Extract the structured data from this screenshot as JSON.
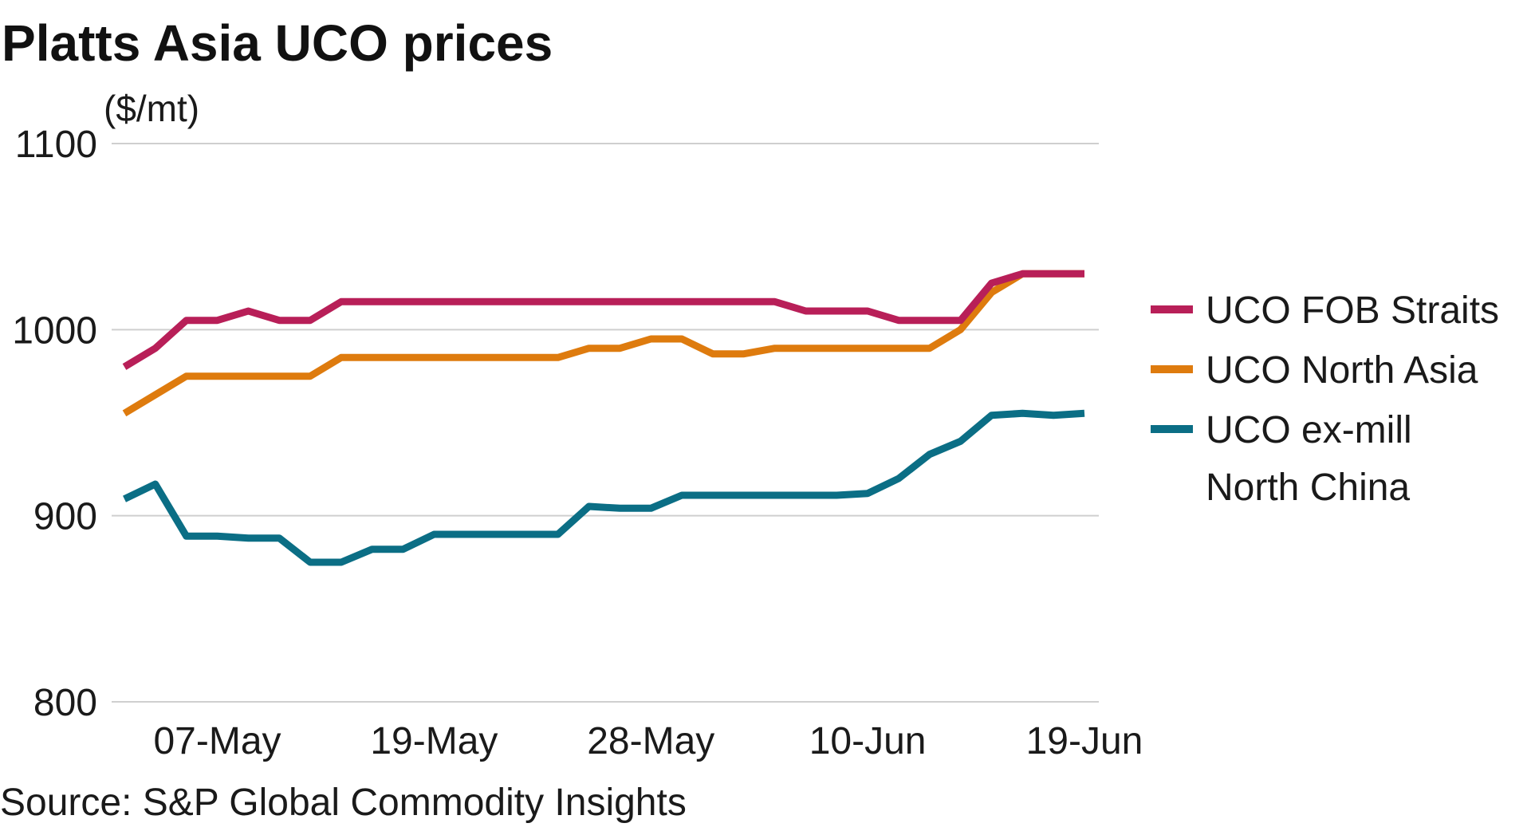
{
  "chart_data": {
    "type": "line",
    "title": "Platts Asia UCO prices",
    "ylabel": "($/mt)",
    "xlabel": "",
    "source": "Source: S&P Global Commodity Insights",
    "ylim": [
      800,
      1100
    ],
    "yticks": [
      "1100",
      "1000",
      "900",
      "800"
    ],
    "yticks_values": [
      1100,
      1000,
      900,
      800
    ],
    "xtick_labels": [
      "07-May",
      "19-May",
      "28-May",
      "10-Jun",
      "19-Jun"
    ],
    "xtick_index": [
      3,
      10,
      17,
      24,
      31
    ],
    "grid": true,
    "legend_position": "right",
    "colors": {
      "fob_straits": "#b81f58",
      "north_asia": "#de7b0e",
      "ex_mill": "#0b6e85",
      "gridline": "#cfcfcf"
    },
    "series": [
      {
        "name": "UCO FOB Straits",
        "color": "#b81f58",
        "values": [
          980,
          990,
          1005,
          1005,
          1010,
          1005,
          1005,
          1015,
          1015,
          1015,
          1015,
          1015,
          1015,
          1015,
          1015,
          1015,
          1015,
          1015,
          1015,
          1015,
          1015,
          1015,
          1010,
          1010,
          1010,
          1005,
          1005,
          1005,
          1025,
          1030,
          1030,
          1030
        ]
      },
      {
        "name": "UCO North Asia",
        "color": "#de7b0e",
        "values": [
          955,
          965,
          975,
          975,
          975,
          975,
          975,
          985,
          985,
          985,
          985,
          985,
          985,
          985,
          985,
          990,
          990,
          995,
          995,
          987,
          987,
          990,
          990,
          990,
          990,
          990,
          990,
          1000,
          1020,
          1030,
          1030,
          1030
        ]
      },
      {
        "name": "UCO ex-mill North China",
        "color": "#0b6e85",
        "values": [
          909,
          917,
          889,
          889,
          888,
          888,
          875,
          875,
          882,
          882,
          890,
          890,
          890,
          890,
          890,
          905,
          904,
          904,
          911,
          911,
          911,
          911,
          911,
          911,
          912,
          920,
          933,
          940,
          954,
          955,
          954,
          955
        ]
      }
    ],
    "legend": [
      {
        "label_lines": [
          "UCO FOB Straits"
        ],
        "color": "#b81f58"
      },
      {
        "label_lines": [
          "UCO North Asia"
        ],
        "color": "#de7b0e"
      },
      {
        "label_lines": [
          "UCO ex-mill",
          "North China"
        ],
        "color": "#0b6e85"
      }
    ]
  }
}
